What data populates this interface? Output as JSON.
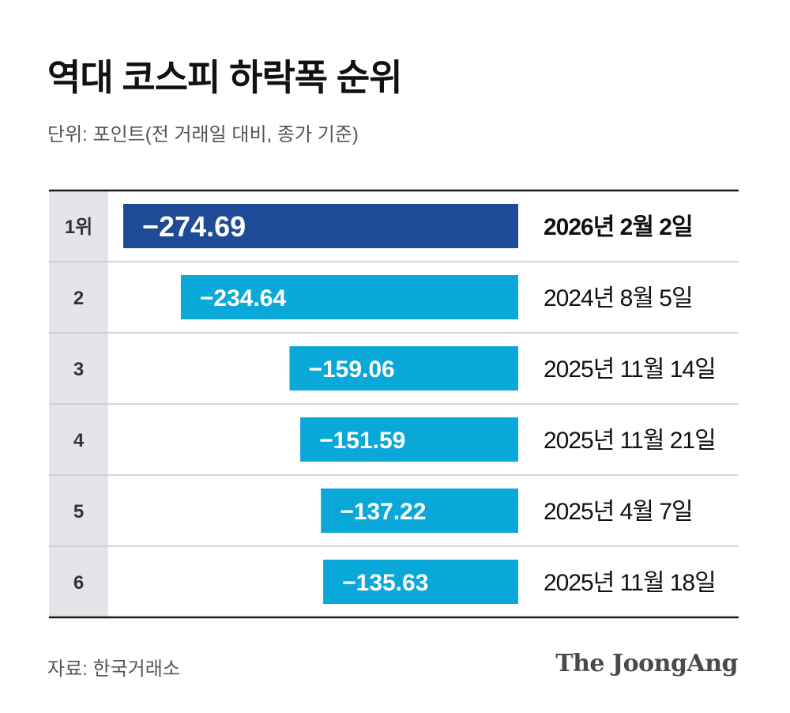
{
  "title": "역대 코스피 하락폭 순위",
  "subtitle": "단위: 포인트(전 거래일 대비, 종가 기준)",
  "source": "자료: 한국거래소",
  "logo": "The JoongAng",
  "colors": {
    "highlight_bar": "#1f4a96",
    "bar": "#0aa8d9",
    "rank_column": "#e3e5e8",
    "rule": "#1a1a1a",
    "separator": "#c9c9c9"
  },
  "chart_data": {
    "type": "bar",
    "orientation": "horizontal",
    "ranks": [
      "1위",
      "2",
      "3",
      "4",
      "5",
      "6"
    ],
    "values": [
      -274.69,
      -234.64,
      -159.06,
      -151.59,
      -137.22,
      -135.63
    ],
    "value_labels": [
      "−274.69",
      "−234.64",
      "−159.06",
      "−151.59",
      "−137.22",
      "−135.63"
    ],
    "dates": [
      "2026년 2월 2일",
      "2024년 8월 5일",
      "2025년 11월 14일",
      "2025년 11월 21일",
      "2025년 4월 7일",
      "2025년 11월 18일"
    ],
    "highlight_index": 0
  }
}
